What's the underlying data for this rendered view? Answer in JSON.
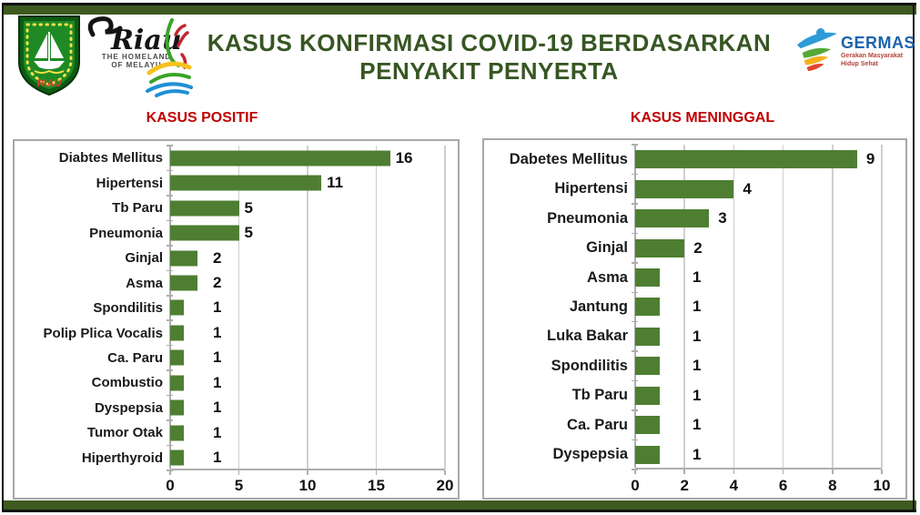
{
  "header": {
    "title_line1": "KASUS KONFIRMASI COVID-19 BERDASARKAN",
    "title_line2": "PENYAKIT PENYERTA",
    "title_color": "#375623",
    "riau_crest": {
      "label": "RIAU"
    },
    "riau_brand": {
      "script": "Riau",
      "tagline_line1": "THE HOMELAND",
      "tagline_line2": "OF MELAYU"
    },
    "germas": {
      "name": "GERMAS",
      "subtitle_line1": "Gerakan Masyarakat",
      "subtitle_line2": "Hidup Sehat"
    }
  },
  "colors": {
    "bar_green": "#4E7E32",
    "frame_green": "#3E5A20",
    "title_red": "#C00000",
    "germas_blue": "#1C63AC"
  },
  "chart_data": [
    {
      "type": "bar",
      "orientation": "horizontal",
      "title": "KASUS POSITIF",
      "title_color": "#C00000",
      "bar_color": "#4E7E32",
      "categories": [
        "Diabtes Mellitus",
        "Hipertensi",
        "Tb Paru",
        "Pneumonia",
        "Ginjal",
        "Asma",
        "Spondilitis",
        "Polip Plica Vocalis",
        "Ca. Paru",
        "Combustio",
        "Dyspepsia",
        "Tumor Otak",
        "Hiperthyroid"
      ],
      "values": [
        16,
        11,
        5,
        5,
        2,
        2,
        1,
        1,
        1,
        1,
        1,
        1,
        1
      ],
      "data_labels": true,
      "xticks": [
        0,
        5,
        10,
        15,
        20
      ],
      "xlim": [
        0,
        20
      ],
      "grid": true,
      "legend": false,
      "xlabel": "",
      "ylabel": ""
    },
    {
      "type": "bar",
      "orientation": "horizontal",
      "title": "KASUS MENINGGAL",
      "title_color": "#C00000",
      "bar_color": "#4E7E32",
      "categories": [
        "Dabetes Mellitus",
        "Hipertensi",
        "Pneumonia",
        "Ginjal",
        "Asma",
        "Jantung",
        "Luka Bakar",
        "Spondilitis",
        "Tb Paru",
        "Ca. Paru",
        "Dyspepsia"
      ],
      "values": [
        9,
        4,
        3,
        2,
        1,
        1,
        1,
        1,
        1,
        1,
        1
      ],
      "data_labels": true,
      "xticks": [
        0,
        2,
        4,
        6,
        8,
        10
      ],
      "xlim": [
        0,
        10
      ],
      "grid": true,
      "legend": false,
      "xlabel": "",
      "ylabel": ""
    }
  ]
}
